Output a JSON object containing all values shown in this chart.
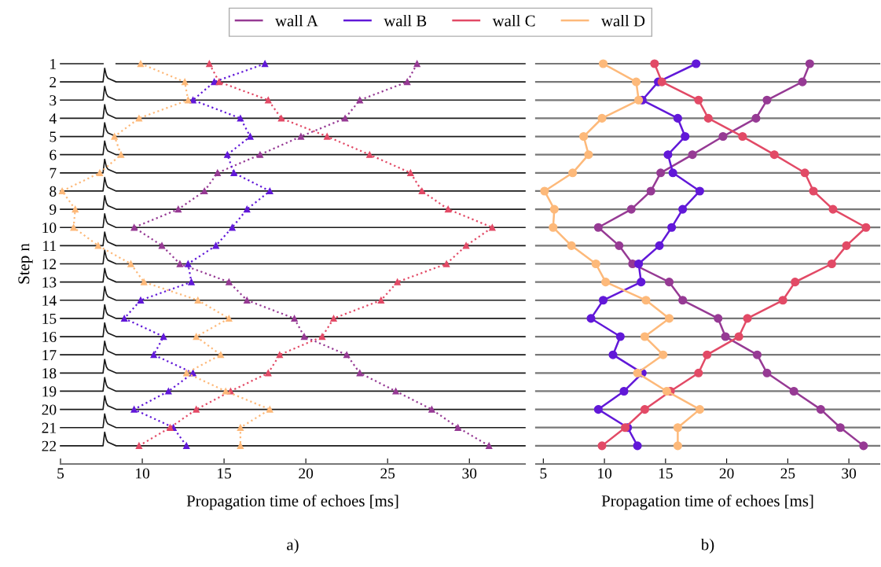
{
  "chart_data": [
    {
      "type": "line",
      "xlabel": "Propagation time of echoes [ms]",
      "ylabel": "Step n",
      "annotations": [
        "a)"
      ],
      "xlim": [
        5,
        33.4
      ],
      "xticks": [
        5,
        10,
        15,
        20,
        25,
        30
      ],
      "ylim": [
        23,
        1
      ],
      "yticks": [
        1,
        2,
        3,
        4,
        5,
        6,
        7,
        8,
        9,
        10,
        11,
        12,
        13,
        14,
        15,
        16,
        17,
        18,
        19,
        20,
        21,
        22
      ],
      "grid": false,
      "series": [
        {
          "color": "#1a1a1a",
          "line_style": "solid",
          "marker": "none",
          "x": [
            5,
            7.6,
            7.7,
            7.8,
            7.9,
            8.4,
            33.4
          ],
          "values": [
            1,
            1,
            null,
            null,
            null,
            1,
            1
          ]
        },
        {
          "color": "#1a1a1a",
          "line_style": "solid",
          "marker": "none",
          "x": [
            5,
            7.6,
            7.7,
            7.8,
            7.9,
            8.4,
            33.4
          ],
          "values": [
            2,
            2,
            1.25,
            1.65,
            1.8,
            2,
            2
          ]
        },
        {
          "color": "#1a1a1a",
          "line_style": "solid",
          "marker": "none",
          "x": [
            5,
            7.6,
            7.7,
            7.8,
            7.9,
            8.4,
            33.4
          ],
          "values": [
            3,
            3,
            2.25,
            2.65,
            2.8,
            3,
            3
          ]
        },
        {
          "color": "#1a1a1a",
          "line_style": "solid",
          "marker": "none",
          "x": [
            5,
            7.6,
            7.7,
            7.8,
            7.9,
            8.4,
            33.4
          ],
          "values": [
            4,
            4,
            3.25,
            3.65,
            3.8,
            4,
            4
          ]
        },
        {
          "color": "#1a1a1a",
          "line_style": "solid",
          "marker": "none",
          "x": [
            5,
            7.6,
            7.7,
            7.8,
            7.9,
            8.4,
            33.4
          ],
          "values": [
            5,
            5,
            4.25,
            4.65,
            4.8,
            5,
            5
          ]
        },
        {
          "color": "#1a1a1a",
          "line_style": "solid",
          "marker": "none",
          "x": [
            5,
            7.6,
            7.7,
            7.8,
            7.9,
            8.4,
            33.4
          ],
          "values": [
            6,
            6,
            5.25,
            5.65,
            5.8,
            6,
            6
          ]
        },
        {
          "color": "#1a1a1a",
          "line_style": "solid",
          "marker": "none",
          "x": [
            5,
            7.6,
            7.7,
            7.8,
            7.9,
            8.4,
            33.4
          ],
          "values": [
            7,
            7,
            6.25,
            6.65,
            6.8,
            7,
            7
          ]
        },
        {
          "color": "#1a1a1a",
          "line_style": "solid",
          "marker": "none",
          "x": [
            5,
            7.6,
            7.7,
            7.8,
            7.9,
            8.4,
            33.4
          ],
          "values": [
            8,
            8,
            7.25,
            7.65,
            7.8,
            8,
            8
          ]
        },
        {
          "color": "#1a1a1a",
          "line_style": "solid",
          "marker": "none",
          "x": [
            5,
            7.6,
            7.7,
            7.8,
            7.9,
            8.4,
            33.4
          ],
          "values": [
            9,
            9,
            8.25,
            8.65,
            8.8,
            9,
            9
          ]
        },
        {
          "color": "#1a1a1a",
          "line_style": "solid",
          "marker": "none",
          "x": [
            5,
            7.6,
            7.7,
            7.8,
            7.9,
            8.4,
            33.4
          ],
          "values": [
            10,
            10,
            9.25,
            9.65,
            9.8,
            10,
            10
          ]
        },
        {
          "color": "#1a1a1a",
          "line_style": "solid",
          "marker": "none",
          "x": [
            5,
            7.6,
            7.7,
            7.8,
            7.9,
            8.4,
            33.4
          ],
          "values": [
            11,
            11,
            10.25,
            10.65,
            10.8,
            11,
            11
          ]
        },
        {
          "color": "#1a1a1a",
          "line_style": "solid",
          "marker": "none",
          "x": [
            5,
            7.6,
            7.7,
            7.8,
            7.9,
            8.4,
            33.4
          ],
          "values": [
            12,
            12,
            11.25,
            11.65,
            11.8,
            12,
            12
          ]
        },
        {
          "color": "#1a1a1a",
          "line_style": "solid",
          "marker": "none",
          "x": [
            5,
            7.6,
            7.7,
            7.8,
            7.9,
            8.4,
            33.4
          ],
          "values": [
            13,
            13,
            12.25,
            12.65,
            12.8,
            13,
            13
          ]
        },
        {
          "color": "#1a1a1a",
          "line_style": "solid",
          "marker": "none",
          "x": [
            5,
            7.6,
            7.7,
            7.8,
            7.9,
            8.4,
            33.4
          ],
          "values": [
            14,
            14,
            13.25,
            13.65,
            13.8,
            14,
            14
          ]
        },
        {
          "color": "#1a1a1a",
          "line_style": "solid",
          "marker": "none",
          "x": [
            5,
            7.6,
            7.7,
            7.8,
            7.9,
            8.4,
            33.4
          ],
          "values": [
            15,
            15,
            14.25,
            14.65,
            14.8,
            15,
            15
          ]
        },
        {
          "color": "#1a1a1a",
          "line_style": "solid",
          "marker": "none",
          "x": [
            5,
            7.6,
            7.7,
            7.8,
            7.9,
            8.4,
            33.4
          ],
          "values": [
            16,
            16,
            15.25,
            15.65,
            15.8,
            16,
            16
          ]
        },
        {
          "color": "#1a1a1a",
          "line_style": "solid",
          "marker": "none",
          "x": [
            5,
            7.6,
            7.7,
            7.8,
            7.9,
            8.4,
            33.4
          ],
          "values": [
            17,
            17,
            16.25,
            16.65,
            16.8,
            17,
            17
          ]
        },
        {
          "color": "#1a1a1a",
          "line_style": "solid",
          "marker": "none",
          "x": [
            5,
            7.6,
            7.7,
            7.8,
            7.9,
            8.4,
            33.4
          ],
          "values": [
            18,
            18,
            17.25,
            17.65,
            17.8,
            18,
            18
          ]
        },
        {
          "color": "#1a1a1a",
          "line_style": "solid",
          "marker": "none",
          "x": [
            5,
            7.6,
            7.7,
            7.8,
            7.9,
            8.4,
            33.4
          ],
          "values": [
            19,
            19,
            18.25,
            18.65,
            18.8,
            19,
            19
          ]
        },
        {
          "color": "#1a1a1a",
          "line_style": "solid",
          "marker": "none",
          "x": [
            5,
            7.6,
            7.7,
            7.8,
            7.9,
            8.4,
            33.4
          ],
          "values": [
            20,
            20,
            19.25,
            19.65,
            19.8,
            20,
            20
          ]
        },
        {
          "color": "#1a1a1a",
          "line_style": "solid",
          "marker": "none",
          "x": [
            5,
            7.6,
            7.7,
            7.8,
            7.9,
            8.4,
            33.4
          ],
          "values": [
            21,
            21,
            20.25,
            20.65,
            20.8,
            21,
            21
          ]
        },
        {
          "color": "#1a1a1a",
          "line_style": "solid",
          "marker": "none",
          "x": [
            5,
            7.6,
            7.7,
            7.8,
            7.9,
            8.4,
            33.4
          ],
          "values": [
            22,
            22,
            21.25,
            21.65,
            21.8,
            22,
            22
          ]
        },
        {
          "color": "#963a94",
          "line_style": "dotted",
          "marker": "triangle",
          "x": [
            26.8,
            26.2,
            23.3,
            22.4,
            19.7,
            17.2,
            14.6,
            13.8,
            12.2,
            9.5,
            11.2,
            12.3,
            15.3,
            16.4,
            19.3,
            19.9,
            22.5,
            23.3,
            25.5,
            27.7,
            29.3,
            31.2
          ],
          "values": [
            1,
            2,
            3,
            4,
            5,
            6,
            7,
            8,
            9,
            10,
            11,
            12,
            13,
            14,
            15,
            16,
            17,
            18,
            19,
            20,
            21,
            22
          ]
        },
        {
          "color": "#6118d8",
          "line_style": "dotted",
          "marker": "triangle",
          "x": [
            17.5,
            14.4,
            13.1,
            16.0,
            16.6,
            15.2,
            15.6,
            17.8,
            16.4,
            15.5,
            14.5,
            12.8,
            13.0,
            9.9,
            8.9,
            11.3,
            10.7,
            13.1,
            11.6,
            9.5,
            11.9,
            12.7
          ],
          "values": [
            1,
            2,
            3,
            4,
            5,
            6,
            7,
            8,
            9,
            10,
            11,
            12,
            13,
            14,
            15,
            16,
            17,
            18,
            19,
            20,
            21,
            22
          ]
        },
        {
          "color": "#e24a66",
          "line_style": "dotted",
          "marker": "triangle",
          "x": [
            14.1,
            14.7,
            17.7,
            18.5,
            21.3,
            23.9,
            26.4,
            27.1,
            28.7,
            31.4,
            29.8,
            28.6,
            25.6,
            24.6,
            21.7,
            21.0,
            18.4,
            17.7,
            15.4,
            13.3,
            11.7,
            9.8
          ],
          "values": [
            1,
            2,
            3,
            4,
            5,
            6,
            7,
            8,
            9,
            10,
            11,
            12,
            13,
            14,
            15,
            16,
            17,
            18,
            19,
            20,
            21,
            22
          ]
        },
        {
          "color": "#fdb97a",
          "line_style": "dotted",
          "marker": "triangle",
          "x": [
            9.9,
            12.6,
            12.8,
            9.8,
            8.3,
            8.7,
            7.4,
            5.1,
            5.9,
            5.8,
            7.3,
            9.3,
            10.1,
            13.4,
            15.3,
            13.3,
            14.8,
            12.7,
            15.1,
            17.8,
            16.0,
            16.0
          ],
          "values": [
            1,
            2,
            3,
            4,
            5,
            6,
            7,
            8,
            9,
            10,
            11,
            12,
            13,
            14,
            15,
            16,
            17,
            18,
            19,
            20,
            21,
            22
          ]
        }
      ]
    },
    {
      "type": "line",
      "xlabel": "Propagation time of echoes [ms]",
      "annotations": [
        "b)"
      ],
      "xlim": [
        4.4,
        32.5
      ],
      "xticks": [
        5,
        10,
        15,
        20,
        25,
        30
      ],
      "ylim": [
        23,
        1
      ],
      "yticks": [
        1,
        2,
        3,
        4,
        5,
        6,
        7,
        8,
        9,
        10,
        11,
        12,
        13,
        14,
        15,
        16,
        17,
        18,
        19,
        20,
        21,
        22
      ],
      "tick_labels": "x",
      "grid": "y",
      "legend": "top",
      "marker": "circle",
      "line_style": "solid",
      "series": [
        {
          "name": "wall A",
          "color": "#963a94",
          "x": [
            26.8,
            26.2,
            23.3,
            22.4,
            19.7,
            17.2,
            14.6,
            13.8,
            12.2,
            9.5,
            11.2,
            12.3,
            15.3,
            16.4,
            19.3,
            19.9,
            22.5,
            23.3,
            25.5,
            27.7,
            29.3,
            31.2
          ],
          "values": [
            1,
            2,
            3,
            4,
            5,
            6,
            7,
            8,
            9,
            10,
            11,
            12,
            13,
            14,
            15,
            16,
            17,
            18,
            19,
            20,
            21,
            22
          ]
        },
        {
          "name": "wall B",
          "color": "#6118d8",
          "x": [
            17.5,
            14.4,
            13.1,
            16.0,
            16.6,
            15.2,
            15.6,
            17.8,
            16.4,
            15.5,
            14.5,
            12.8,
            13.0,
            9.9,
            8.9,
            11.3,
            10.7,
            13.1,
            11.6,
            9.5,
            11.9,
            12.7
          ],
          "values": [
            1,
            2,
            3,
            4,
            5,
            6,
            7,
            8,
            9,
            10,
            11,
            12,
            13,
            14,
            15,
            16,
            17,
            18,
            19,
            20,
            21,
            22
          ]
        },
        {
          "name": "wall C",
          "color": "#e24a66",
          "x": [
            14.1,
            14.7,
            17.7,
            18.5,
            21.3,
            23.9,
            26.4,
            27.1,
            28.7,
            31.4,
            29.8,
            28.6,
            25.6,
            24.6,
            21.7,
            21.0,
            18.4,
            17.7,
            15.4,
            13.3,
            11.7,
            9.8
          ],
          "values": [
            1,
            2,
            3,
            4,
            5,
            6,
            7,
            8,
            9,
            10,
            11,
            12,
            13,
            14,
            15,
            16,
            17,
            18,
            19,
            20,
            21,
            22
          ]
        },
        {
          "name": "wall D",
          "color": "#fdb97a",
          "x": [
            9.9,
            12.6,
            12.8,
            9.8,
            8.3,
            8.7,
            7.4,
            5.1,
            5.9,
            5.8,
            7.3,
            9.3,
            10.1,
            13.4,
            15.3,
            13.3,
            14.8,
            12.7,
            15.1,
            17.8,
            16.0,
            16.0
          ],
          "values": [
            1,
            2,
            3,
            4,
            5,
            6,
            7,
            8,
            9,
            10,
            11,
            12,
            13,
            14,
            15,
            16,
            17,
            18,
            19,
            20,
            21,
            22
          ]
        }
      ]
    }
  ]
}
